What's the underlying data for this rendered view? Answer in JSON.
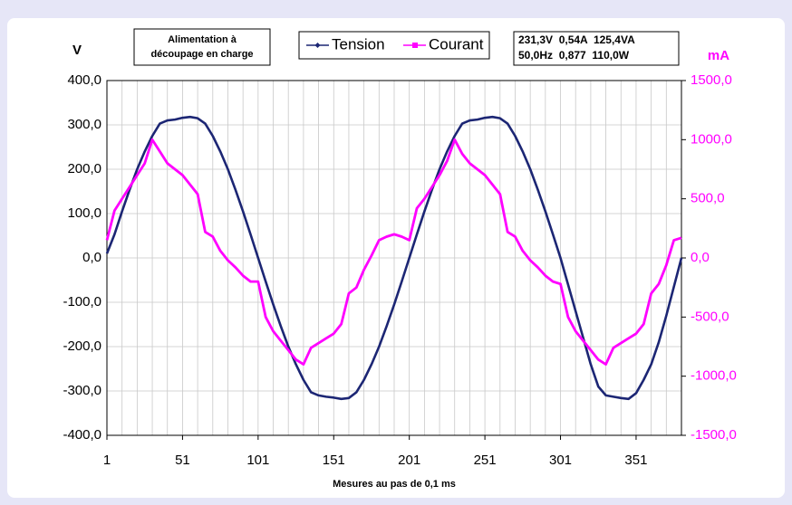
{
  "chart_data": {
    "type": "line",
    "annotation_lines": [
      "Alimentation à",
      "découpage en charge"
    ],
    "info_lines": [
      "231,3V  0,54A  125,4VA",
      "50,0Hz  0,877  110,0W"
    ],
    "ylabel": "V",
    "y2label": "mA",
    "xlabel": "Mesures au pas de 0,1 ms",
    "x": [
      1,
      6,
      11,
      16,
      21,
      26,
      31,
      36,
      41,
      46,
      51,
      56,
      61,
      66,
      71,
      76,
      81,
      86,
      91,
      96,
      101,
      106,
      111,
      116,
      121,
      126,
      131,
      136,
      141,
      146,
      151,
      156,
      161,
      166,
      171,
      176,
      181,
      186,
      191,
      196,
      201,
      206,
      211,
      216,
      221,
      226,
      231,
      236,
      241,
      246,
      251,
      256,
      261,
      266,
      271,
      276,
      281,
      286,
      291,
      296,
      301,
      306,
      311,
      316,
      321,
      326,
      331,
      336,
      341,
      346,
      351,
      356,
      361,
      366,
      371,
      376,
      381
    ],
    "series": [
      {
        "name": "Tension",
        "color": "#1c2674",
        "axis": "y",
        "values": [
          10,
          53,
          105,
          154,
          200,
          240,
          275,
          303,
          310,
          312,
          316,
          318,
          315,
          303,
          275,
          240,
          200,
          154,
          105,
          53,
          0,
          -53,
          -105,
          -154,
          -200,
          -240,
          -275,
          -303,
          -310,
          -313,
          -315,
          -318,
          -316,
          -303,
          -275,
          -240,
          -200,
          -154,
          -105,
          -53,
          0,
          53,
          105,
          154,
          200,
          240,
          275,
          303,
          310,
          312,
          316,
          318,
          315,
          303,
          275,
          240,
          200,
          154,
          105,
          53,
          0,
          -60,
          -120,
          -180,
          -240,
          -290,
          -310,
          -313,
          -316,
          -318,
          -305,
          -275,
          -240,
          -190,
          -130,
          -65,
          0
        ]
      },
      {
        "name": "Courant",
        "color": "#ff00ff",
        "axis": "y2",
        "values": [
          150,
          400,
          500,
          600,
          700,
          800,
          1000,
          900,
          800,
          750,
          700,
          620,
          540,
          220,
          180,
          60,
          -20,
          -80,
          -150,
          -200,
          -200,
          -500,
          -620,
          -700,
          -780,
          -860,
          -900,
          -760,
          -720,
          -680,
          -640,
          -560,
          -300,
          -250,
          -100,
          20,
          150,
          180,
          200,
          180,
          150,
          420,
          500,
          600,
          700,
          820,
          1000,
          880,
          800,
          750,
          700,
          620,
          540,
          220,
          180,
          60,
          -20,
          -80,
          -150,
          -200,
          -220,
          -500,
          -620,
          -700,
          -780,
          -860,
          -900,
          -760,
          -720,
          -680,
          -640,
          -560,
          -300,
          -220,
          -60,
          150,
          170
        ]
      }
    ],
    "xlim": [
      1,
      381
    ],
    "xticks": [
      1,
      51,
      101,
      151,
      201,
      251,
      301,
      351
    ],
    "x_gridlines": [
      11,
      21,
      31,
      41,
      61,
      71,
      81,
      91,
      111,
      121,
      131,
      141,
      161,
      171,
      181,
      191,
      211,
      221,
      231,
      241,
      261,
      271,
      281,
      291,
      311,
      321,
      331,
      341,
      361,
      371,
      381
    ],
    "ylim": [
      -400,
      400
    ],
    "yticks": [
      {
        "value": -400,
        "label": "-400,0"
      },
      {
        "value": -300,
        "label": "-300,0"
      },
      {
        "value": -200,
        "label": "-200,0"
      },
      {
        "value": -100,
        "label": "-100,0"
      },
      {
        "value": 0,
        "label": "0,0"
      },
      {
        "value": 100,
        "label": "100,0"
      },
      {
        "value": 200,
        "label": "200,0"
      },
      {
        "value": 300,
        "label": "300,0"
      },
      {
        "value": 400,
        "label": "400,0"
      }
    ],
    "y2lim": [
      -1500,
      1500
    ],
    "y2ticks": [
      {
        "value": -1500,
        "label": "-1500,0"
      },
      {
        "value": -1000,
        "label": "-1000,0"
      },
      {
        "value": -500,
        "label": "-500,0"
      },
      {
        "value": 0,
        "label": "0,0"
      },
      {
        "value": 500,
        "label": "500,0"
      },
      {
        "value": 1000,
        "label": "1000,0"
      },
      {
        "value": 1500,
        "label": "1500,0"
      }
    ],
    "y2color": "#ff00ff",
    "grid": true,
    "legend": "top"
  }
}
